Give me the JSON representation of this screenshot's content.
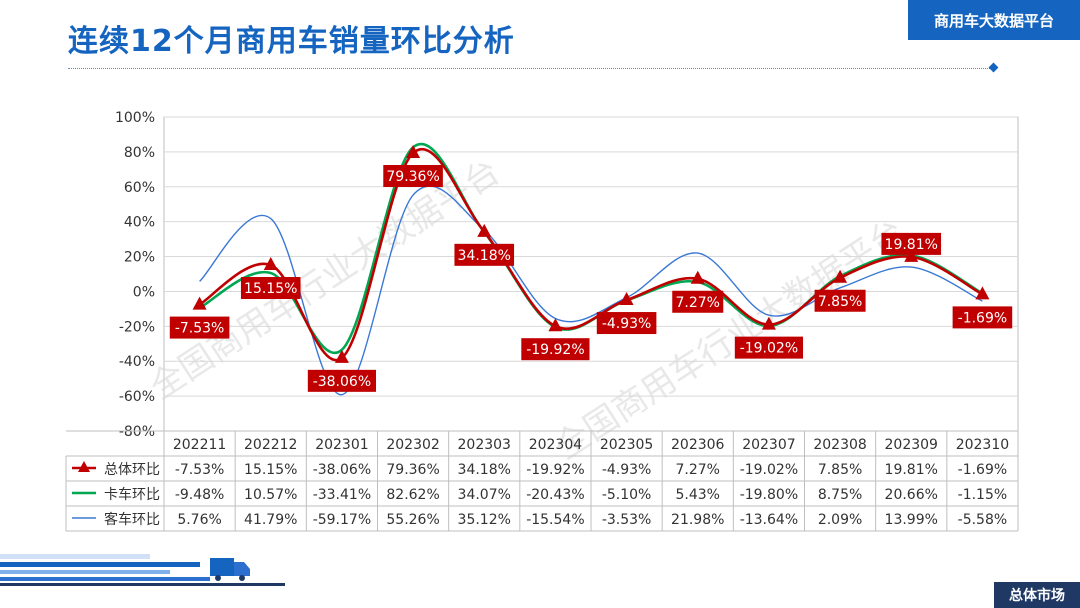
{
  "page": {
    "title": "连续12个月商用车销量环比分析",
    "platform": "商用车大数据平台",
    "section": "总体市场",
    "watermark": "全国商用车行业大数据平台"
  },
  "colors": {
    "accent": "#1565c0",
    "total": "#c00000",
    "truck": "#00a651",
    "bus": "#3a78d6"
  },
  "chart_data": {
    "type": "line",
    "categories": [
      "202211",
      "202212",
      "202301",
      "202302",
      "202303",
      "202304",
      "202305",
      "202306",
      "202307",
      "202308",
      "202309",
      "202310"
    ],
    "ylim": [
      -80,
      100
    ],
    "yticks": [
      -80,
      -60,
      -40,
      -20,
      0,
      20,
      40,
      60,
      80,
      100
    ],
    "ytick_labels": [
      "-80%",
      "-60%",
      "-40%",
      "-20%",
      "0%",
      "20%",
      "40%",
      "60%",
      "80%",
      "100%"
    ],
    "y_unit": "%",
    "grid": true,
    "data_table": true,
    "series": [
      {
        "name": "总体环比",
        "color": "#c00000",
        "marker": "triangle",
        "labeled": true,
        "values": [
          -7.53,
          15.15,
          -38.06,
          79.36,
          34.18,
          -19.92,
          -4.93,
          7.27,
          -19.02,
          7.85,
          19.81,
          -1.69
        ]
      },
      {
        "name": "卡车环比",
        "color": "#00a651",
        "marker": "none",
        "labeled": false,
        "values": [
          -9.48,
          10.57,
          -33.41,
          82.62,
          34.07,
          -20.43,
          -5.1,
          5.43,
          -19.8,
          8.75,
          20.66,
          -1.15
        ]
      },
      {
        "name": "客车环比",
        "color": "#3a78d6",
        "marker": "none",
        "labeled": false,
        "values": [
          5.76,
          41.79,
          -59.17,
          55.26,
          35.12,
          -15.54,
          -3.53,
          21.98,
          -13.64,
          2.09,
          13.99,
          -5.58
        ]
      }
    ]
  }
}
